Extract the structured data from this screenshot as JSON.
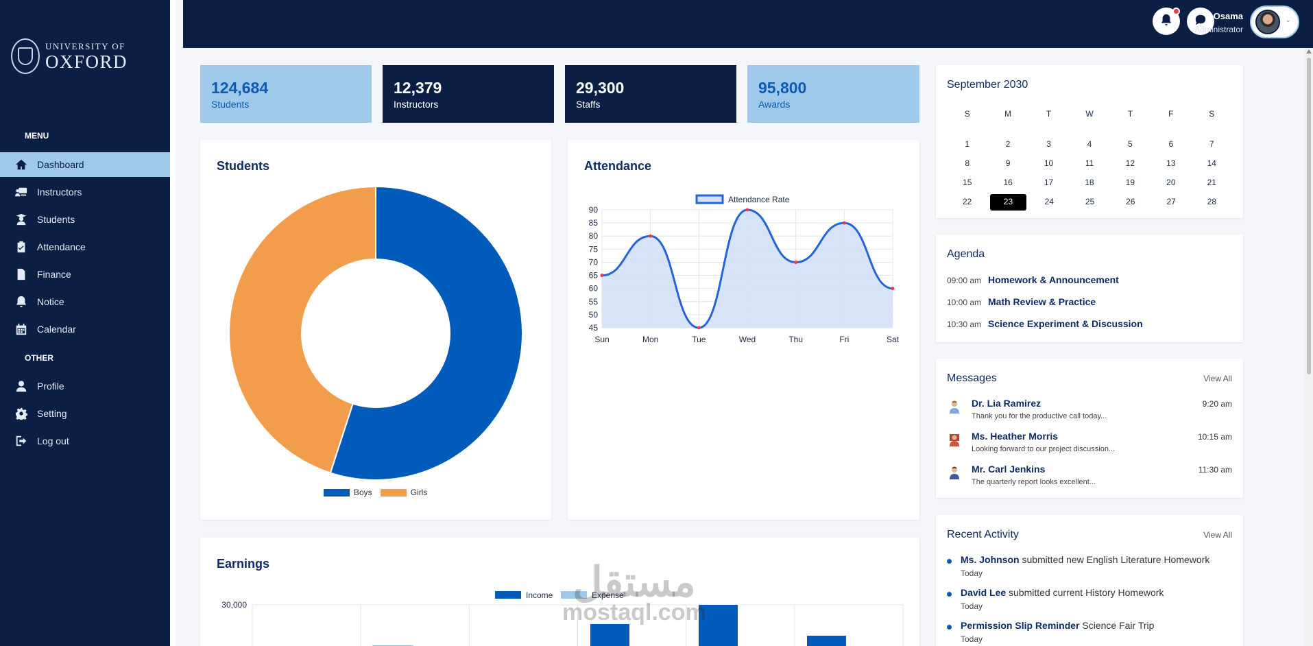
{
  "brand": {
    "line1": "UNIVERSITY OF",
    "line2": "OXFORD"
  },
  "sidebar": {
    "menu_heading": "MENU",
    "other_heading": "OTHER",
    "menu_items": [
      {
        "label": "Dashboard",
        "icon": "home-icon",
        "active": true
      },
      {
        "label": "Instructors",
        "icon": "instructor-icon"
      },
      {
        "label": "Students",
        "icon": "student-icon"
      },
      {
        "label": "Attendance",
        "icon": "clipboard-icon"
      },
      {
        "label": "Finance",
        "icon": "document-icon"
      },
      {
        "label": "Notice",
        "icon": "bell-icon"
      },
      {
        "label": "Calendar",
        "icon": "calendar-icon"
      }
    ],
    "other_items": [
      {
        "label": "Profile",
        "icon": "user-icon"
      },
      {
        "label": "Setting",
        "icon": "gear-icon"
      },
      {
        "label": "Log out",
        "icon": "logout-icon"
      }
    ]
  },
  "header": {
    "user_name": "Osama",
    "user_role": "Administrator"
  },
  "stats": [
    {
      "value": "124,684",
      "label": "Students",
      "style": "light"
    },
    {
      "value": "12,379",
      "label": "Instructors",
      "style": "dark"
    },
    {
      "value": "29,300",
      "label": "Staffs",
      "style": "dark"
    },
    {
      "value": "95,800",
      "label": "Awards",
      "style": "light"
    }
  ],
  "students_card": {
    "title": "Students"
  },
  "attendance_card": {
    "title": "Attendance"
  },
  "earnings_card": {
    "title": "Earnings"
  },
  "chart_data": [
    {
      "type": "pie",
      "variant": "doughnut",
      "categories": [
        "Boys",
        "Girls"
      ],
      "values": [
        55,
        45
      ],
      "colors": [
        "#005bbb",
        "#f29d4b"
      ],
      "legend": "bottom"
    },
    {
      "type": "line",
      "categories": [
        "Sun",
        "Mon",
        "Tue",
        "Wed",
        "Thu",
        "Fri",
        "Sat"
      ],
      "series": [
        {
          "name": "Attendance Rate",
          "values": [
            65,
            80,
            45,
            90,
            70,
            85,
            60
          ]
        }
      ],
      "ylim": [
        45,
        90
      ],
      "yticks": [
        45,
        50,
        55,
        60,
        65,
        70,
        75,
        80,
        85,
        90
      ],
      "grid": true,
      "legend": "top",
      "line_color": "#2563d9",
      "fill_color": "#d3e0f8",
      "point_color": "#e53e4e"
    },
    {
      "type": "bar",
      "series": [
        {
          "name": "Income",
          "color": "#005bbb"
        },
        {
          "name": "Expense",
          "color": "#9fc9ea"
        }
      ],
      "yticks": [
        "30,000"
      ],
      "legend": "top"
    }
  ],
  "calendar": {
    "month_label": "September 2030",
    "weekdays": [
      "S",
      "M",
      "T",
      "W",
      "T",
      "F",
      "S"
    ],
    "weeks": [
      [
        "1",
        "2",
        "3",
        "4",
        "5",
        "6",
        "7"
      ],
      [
        "8",
        "9",
        "10",
        "11",
        "12",
        "13",
        "14"
      ],
      [
        "15",
        "16",
        "17",
        "18",
        "19",
        "20",
        "21"
      ],
      [
        "22",
        "23",
        "24",
        "25",
        "26",
        "27",
        "28"
      ]
    ],
    "today": "23"
  },
  "agenda": {
    "title": "Agenda",
    "items": [
      {
        "time": "09:00 am",
        "text": "Homework & Announcement"
      },
      {
        "time": "10:00 am",
        "text": "Math Review & Practice"
      },
      {
        "time": "10:30 am",
        "text": "Science Experiment & Discussion"
      }
    ]
  },
  "messages": {
    "title": "Messages",
    "view_all": "View All",
    "items": [
      {
        "name": "Dr. Lia Ramirez",
        "text": "Thank you for the productive call today...",
        "time": "9:20 am"
      },
      {
        "name": "Ms. Heather Morris",
        "text": "Looking forward to our project discussion...",
        "time": "10:15 am"
      },
      {
        "name": "Mr. Carl Jenkins",
        "text": "The quarterly report looks excellent...",
        "time": "11:30 am"
      }
    ]
  },
  "activity": {
    "title": "Recent Activity",
    "view_all": "View All",
    "items": [
      {
        "actor": "Ms. Johnson",
        "text": " submitted new English Literature Homework",
        "when": "Today"
      },
      {
        "actor": "David Lee",
        "text": " submitted current History Homework",
        "when": "Today"
      },
      {
        "actor": "Permission Slip Reminder",
        "text": " Science Fair Trip",
        "when": "Today"
      }
    ]
  },
  "watermark": {
    "arabic": "مستقل",
    "latin": "mostaql.com"
  }
}
